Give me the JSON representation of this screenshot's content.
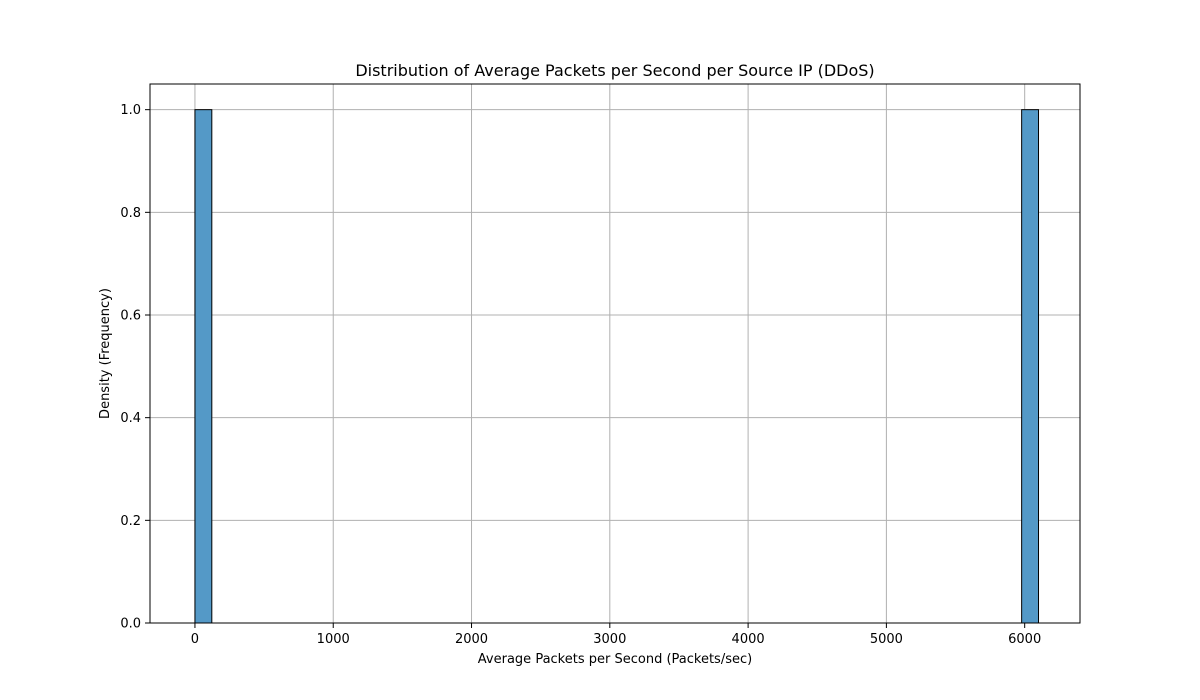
{
  "chart_data": {
    "type": "bar",
    "title": "Distribution of Average Packets per Second per Source IP (DDoS)",
    "xlabel": "Average Packets per Second (Packets/sec)",
    "ylabel": "Density (Frequency)",
    "xlim": [
      -325,
      6400
    ],
    "ylim": [
      0,
      1.05
    ],
    "xticks": [
      0,
      1000,
      2000,
      3000,
      4000,
      5000,
      6000
    ],
    "xtick_labels": [
      "0",
      "1000",
      "2000",
      "3000",
      "4000",
      "5000",
      "6000"
    ],
    "yticks": [
      0.0,
      0.2,
      0.4,
      0.6,
      0.8,
      1.0
    ],
    "ytick_labels": [
      "0.0",
      "0.2",
      "0.4",
      "0.6",
      "0.8",
      "1.0"
    ],
    "grid": true,
    "bins": [
      {
        "x0": 0,
        "x1": 122,
        "value": 1.0
      },
      {
        "x0": 5978,
        "x1": 6100,
        "value": 1.0
      }
    ],
    "colors": {
      "bar_fill": "#5499c7",
      "bar_edge": "#000000",
      "grid": "#b0b0b0"
    }
  }
}
